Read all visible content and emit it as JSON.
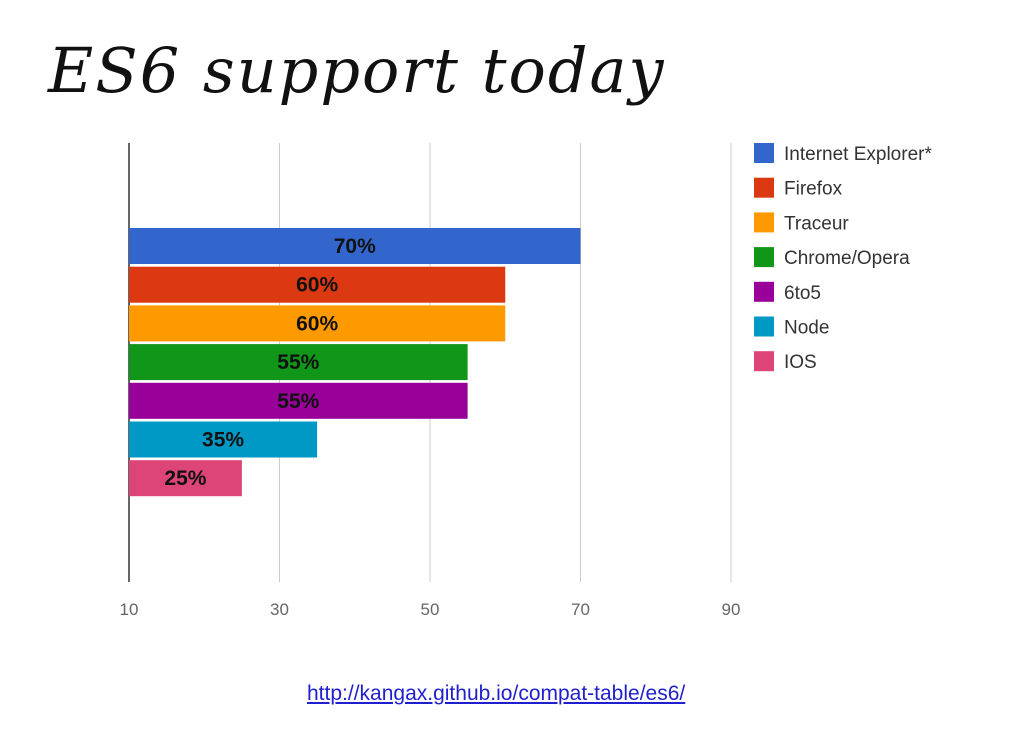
{
  "title": "ES6 support today",
  "source_link": "http://kangax.github.io/compat-table/es6/",
  "chart_data": {
    "type": "bar",
    "orientation": "horizontal",
    "categories": [
      "Internet Explorer*",
      "Firefox",
      "Traceur",
      "Chrome/Opera",
      "6to5",
      "Node",
      "IOS"
    ],
    "values": [
      70,
      60,
      60,
      55,
      55,
      35,
      25
    ],
    "data_labels": [
      "70%",
      "60%",
      "60%",
      "55%",
      "55%",
      "35%",
      "25%"
    ],
    "colors": [
      "#3366cc",
      "#dc3912",
      "#ff9900",
      "#109618",
      "#990099",
      "#0099c6",
      "#dd4477"
    ],
    "xlim": [
      10,
      90
    ],
    "xticks": [
      "10",
      "30",
      "50",
      "70",
      "90"
    ],
    "grid": true,
    "legend": "right"
  }
}
